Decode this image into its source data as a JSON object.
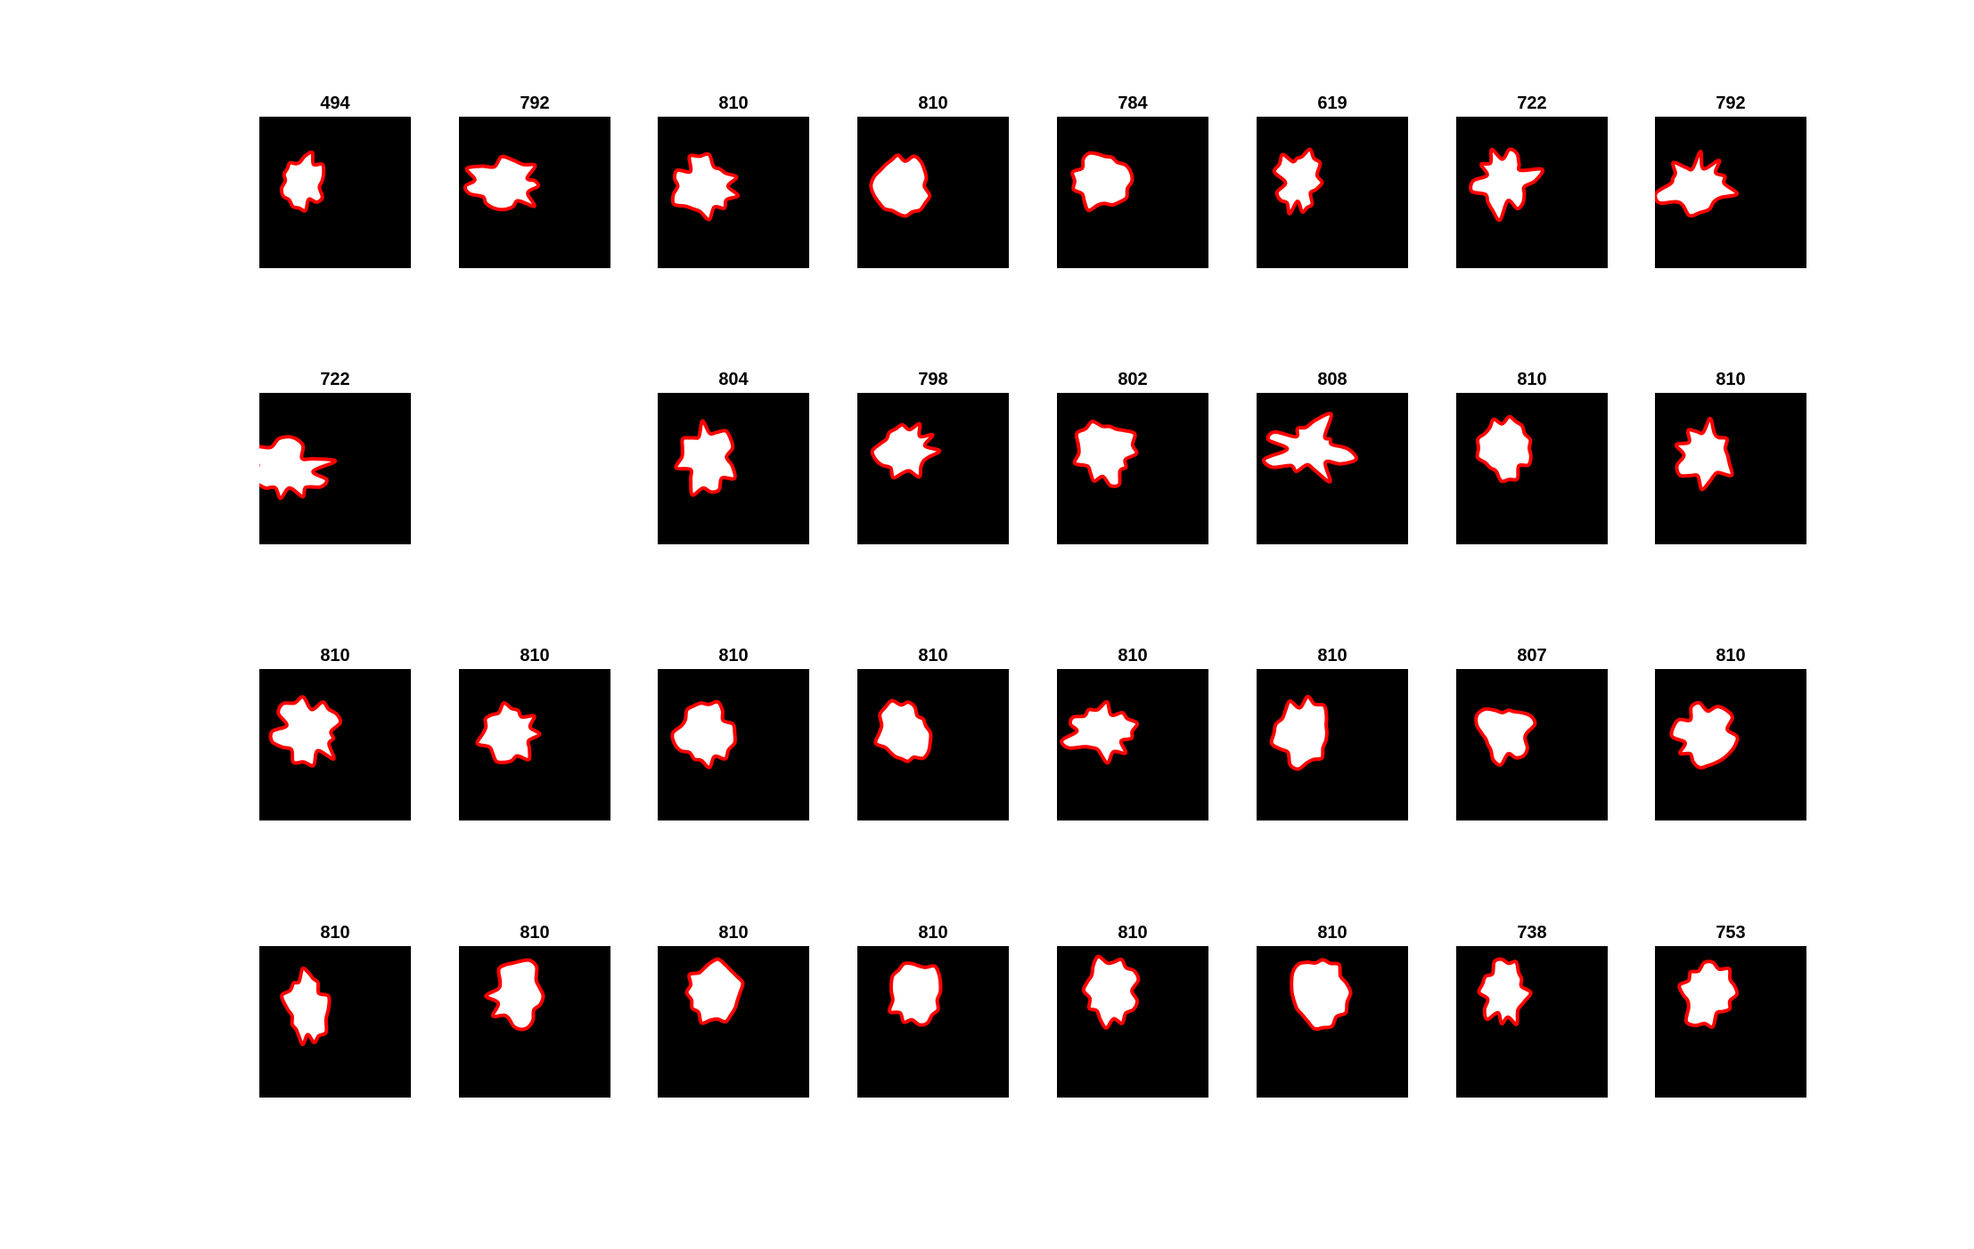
{
  "figure": {
    "background": "#ffffff",
    "image_background": "#000000",
    "blob_fill": "#ffffff",
    "contour_color": "#ff0000",
    "panels": [
      {
        "title": "494",
        "visible": true
      },
      {
        "title": "792",
        "visible": true
      },
      {
        "title": "810",
        "visible": true
      },
      {
        "title": "810",
        "visible": true
      },
      {
        "title": "784",
        "visible": true
      },
      {
        "title": "619",
        "visible": true
      },
      {
        "title": "722",
        "visible": true
      },
      {
        "title": "792",
        "visible": true
      },
      {
        "title": "722",
        "visible": true
      },
      {
        "title": "",
        "visible": false
      },
      {
        "title": "804",
        "visible": true
      },
      {
        "title": "798",
        "visible": true
      },
      {
        "title": "802",
        "visible": true
      },
      {
        "title": "808",
        "visible": true
      },
      {
        "title": "810",
        "visible": true
      },
      {
        "title": "810",
        "visible": true
      },
      {
        "title": "810",
        "visible": true
      },
      {
        "title": "810",
        "visible": true
      },
      {
        "title": "810",
        "visible": true
      },
      {
        "title": "810",
        "visible": true
      },
      {
        "title": "810",
        "visible": true
      },
      {
        "title": "810",
        "visible": true
      },
      {
        "title": "807",
        "visible": true
      },
      {
        "title": "810",
        "visible": true
      },
      {
        "title": "810",
        "visible": true
      },
      {
        "title": "810",
        "visible": true
      },
      {
        "title": "810",
        "visible": true
      },
      {
        "title": "810",
        "visible": true
      },
      {
        "title": "810",
        "visible": true
      },
      {
        "title": "810",
        "visible": true
      },
      {
        "title": "738",
        "visible": true
      },
      {
        "title": "753",
        "visible": true
      }
    ]
  }
}
